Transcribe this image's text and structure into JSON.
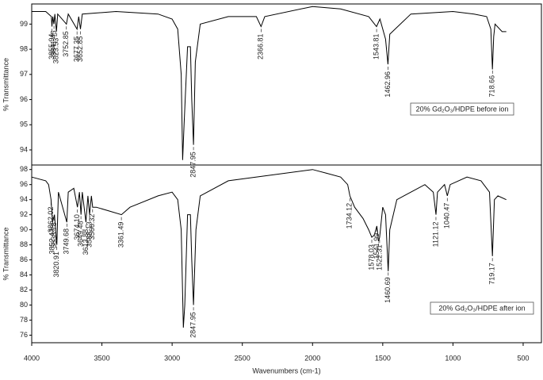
{
  "chart_data": [
    {
      "type": "line",
      "ylabel": "% Transmittance",
      "note": "20% Gd₂O₃/HDPE before ion",
      "color": "#000000",
      "xlim": [
        4000,
        370
      ],
      "ylim": [
        93.4,
        99.8
      ],
      "yticks": [
        94,
        95,
        96,
        97,
        98,
        99
      ],
      "x": [
        4000,
        3900,
        3860,
        3856,
        3850,
        3842,
        3835,
        3824,
        3815,
        3753,
        3740,
        3677,
        3665,
        3653,
        3640,
        3400,
        3100,
        3000,
        2960,
        2935,
        2925,
        2915,
        2890,
        2870,
        2860,
        2848,
        2835,
        2800,
        2600,
        2400,
        2367,
        2340,
        2000,
        1800,
        1600,
        1544,
        1520,
        1480,
        1463,
        1450,
        1300,
        1000,
        850,
        760,
        730,
        719,
        710,
        700,
        650,
        620
      ],
      "values": [
        99.5,
        99.5,
        99.3,
        98.9,
        99.3,
        99.0,
        99.4,
        98.7,
        99.4,
        99.0,
        99.4,
        98.8,
        99.3,
        98.8,
        99.4,
        99.5,
        99.4,
        99.2,
        98.8,
        97.0,
        93.6,
        95.0,
        98.1,
        98.1,
        96.0,
        94.2,
        97.5,
        99.0,
        99.3,
        99.3,
        98.9,
        99.3,
        99.7,
        99.6,
        99.3,
        98.9,
        99.2,
        98.4,
        97.4,
        98.6,
        99.4,
        99.5,
        99.4,
        99.3,
        98.8,
        97.2,
        98.5,
        99.0,
        98.7,
        98.7
      ],
      "peaks": [
        3855.94,
        3841.45,
        3823.53,
        3752.85,
        3677.35,
        3652.85,
        2847.95,
        2366.81,
        1543.81,
        1462.96,
        718.66
      ]
    },
    {
      "type": "line",
      "ylabel": "% Transmittance",
      "xlabel": "Wavenumbers (cm-1)",
      "note": "20% Gd₂O₃/HDPE after ion",
      "color": "#000000",
      "xlim": [
        4000,
        370
      ],
      "ylim": [
        75,
        98.6
      ],
      "yticks": [
        76,
        78,
        80,
        82,
        84,
        86,
        88,
        90,
        92,
        94,
        96,
        98
      ],
      "xticks": [
        4000,
        3500,
        3000,
        2500,
        2000,
        1500,
        1000,
        500
      ],
      "x": [
        4000,
        3900,
        3880,
        3862,
        3852,
        3838,
        3821,
        3810,
        3750,
        3740,
        3700,
        3674,
        3660,
        3649,
        3640,
        3614,
        3600,
        3588,
        3575,
        3566,
        3540,
        3450,
        3361,
        3300,
        3100,
        3000,
        2960,
        2935,
        2920,
        2910,
        2890,
        2870,
        2860,
        2848,
        2830,
        2800,
        2600,
        2000,
        1900,
        1800,
        1750,
        1734,
        1700,
        1640,
        1600,
        1578,
        1560,
        1542,
        1530,
        1522,
        1500,
        1480,
        1461,
        1450,
        1400,
        1300,
        1200,
        1140,
        1121,
        1110,
        1060,
        1040,
        1020,
        900,
        800,
        740,
        719,
        705,
        680,
        620
      ],
      "values": [
        97,
        96.5,
        96,
        94,
        91,
        92,
        88,
        95,
        91,
        95,
        95.5,
        93,
        95,
        92,
        95,
        91,
        94.5,
        92,
        94.5,
        93,
        93,
        92.5,
        92,
        93,
        94.5,
        95,
        94,
        90,
        77,
        80,
        92,
        92,
        86,
        80,
        90,
        94.5,
        96.5,
        98,
        97.5,
        97,
        96,
        94.5,
        93,
        91.5,
        90,
        89,
        89.3,
        90.5,
        88.5,
        89,
        93,
        92,
        84.5,
        90,
        94,
        95,
        96,
        95,
        92,
        95,
        96,
        94.5,
        96,
        97,
        96.5,
        95,
        86.5,
        94,
        94.5,
        94
      ],
      "peaks": [
        3862.02,
        3852.43,
        3838.78,
        3820.91,
        3749.68,
        {
          "value": 3674.1,
          "label": "3674.10"
        },
        3649.48,
        3613.88,
        3588.13,
        3566.32,
        3361.49,
        2847.95,
        1734.12,
        1578.03,
        1541.99,
        1522.31,
        1460.69,
        1121.12,
        1040.47,
        719.17
      ]
    }
  ]
}
